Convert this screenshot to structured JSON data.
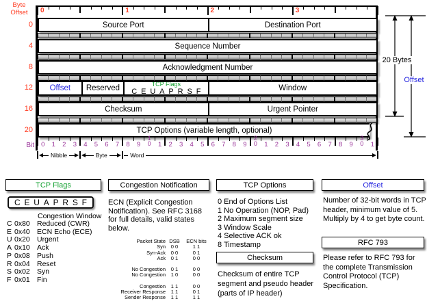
{
  "colors": {
    "red": "#FF3B21",
    "purple": "#993399",
    "blue": "#2424DF",
    "green": "#12A02F",
    "black": "#000000"
  },
  "header_diagram": {
    "byte_offset_label": "Byte Offset",
    "byte_numbers": [
      "0",
      "1",
      "2",
      "3"
    ],
    "row_offsets": [
      "0",
      "4",
      "8",
      "12",
      "16",
      "20"
    ],
    "rows": [
      {
        "cells": [
          {
            "label": "Source Port",
            "bits": 16
          },
          {
            "label": "Destination Port",
            "bits": 16
          }
        ]
      },
      {
        "cells": [
          {
            "label": "Sequence Number",
            "bits": 32
          }
        ]
      },
      {
        "cells": [
          {
            "label": "Acknowledgment Number",
            "bits": 32
          }
        ]
      },
      {
        "cells": [
          {
            "label": "Offset",
            "bits": 4,
            "color": "blue"
          },
          {
            "label": "Reserved",
            "bits": 4
          },
          {
            "label": "TCP Flags",
            "bits": 8,
            "color": "green",
            "sub_letters": [
              "C",
              "E",
              "U",
              "A",
              "P",
              "R",
              "S",
              "F"
            ]
          },
          {
            "label": "Window",
            "bits": 16
          }
        ]
      },
      {
        "cells": [
          {
            "label": "Checksum",
            "bits": 16
          },
          {
            "label": "Urgent Pointer",
            "bits": 16
          }
        ]
      },
      {
        "cells": [
          {
            "label": "TCP Options (variable length, optional)",
            "bits": 32,
            "wavy": true
          }
        ]
      }
    ],
    "bit_label": "Bit",
    "bit_numbers": [
      "0",
      "1",
      "2",
      "3",
      "4",
      "5",
      "6",
      "7",
      "8",
      "9",
      "10",
      "1",
      "2",
      "3",
      "4",
      "5",
      "6",
      "7",
      "8",
      "9",
      "20",
      "1",
      "2",
      "3",
      "4",
      "5",
      "6",
      "7",
      "8",
      "9",
      "30",
      "1"
    ],
    "unit_arrows": [
      {
        "label": "Nibble",
        "from": 0,
        "to": 4
      },
      {
        "label": "Byte",
        "from": 4,
        "to": 8
      },
      {
        "label": "Word",
        "from": 8,
        "to": 32
      }
    ],
    "side_annotations": [
      {
        "label": "20 Bytes",
        "color": "black"
      },
      {
        "label": "Offset",
        "color": "blue"
      }
    ]
  },
  "legend": {
    "tcp_flags": {
      "title": "TCP Flags",
      "flag_letters": [
        "C",
        "E",
        "U",
        "A",
        "P",
        "R",
        "S",
        "F"
      ],
      "intro_line": "Congestion Window",
      "items": [
        {
          "flag": "C",
          "hex": "0x80",
          "name": "Reduced (CWR)"
        },
        {
          "flag": "E",
          "hex": "0x40",
          "name": "ECN Echo (ECE)"
        },
        {
          "flag": "U",
          "hex": "0x20",
          "name": "Urgent"
        },
        {
          "flag": "A",
          "hex": "0x10",
          "name": "Ack"
        },
        {
          "flag": "P",
          "hex": "0x08",
          "name": "Push"
        },
        {
          "flag": "R",
          "hex": "0x04",
          "name": "Reset"
        },
        {
          "flag": "S",
          "hex": "0x02",
          "name": "Syn"
        },
        {
          "flag": "F",
          "hex": "0x01",
          "name": "Fin"
        }
      ]
    },
    "congestion_notification": {
      "title": "Congestion Notification",
      "description": "ECN (Explicit Congestion Notification).  See RFC 3168 for full details, valid states below.",
      "table": {
        "headers": [
          "Packet State",
          "DSB",
          "ECN bits"
        ],
        "rows": [
          [
            "Syn",
            "0 0",
            "1 1"
          ],
          [
            "Syn-Ack",
            "0 0",
            "0 1"
          ],
          [
            "Ack",
            "0 1",
            "0 0"
          ],
          [
            "",
            "",
            ""
          ],
          [
            "No Congestion",
            "0 1",
            "0 0"
          ],
          [
            "No Congestion",
            "1 0",
            "0 0"
          ],
          [
            "",
            "",
            ""
          ],
          [
            "Congestion",
            "1 1",
            "0 0"
          ],
          [
            "Receiver Response",
            "1 1",
            "0 1"
          ],
          [
            "Sender Response",
            "1 1",
            "1 1"
          ]
        ]
      }
    },
    "tcp_options": {
      "title": "TCP Options",
      "items": [
        "0 End of Options List",
        "1 No Operation (NOP, Pad)",
        "2 Maximum segment size",
        "3 Window Scale",
        "4 Selective ACK ok",
        "8 Timestamp"
      ]
    },
    "checksum": {
      "title": "Checksum",
      "description": "Checksum of entire TCP segment and pseudo header (parts of IP header)"
    },
    "offset": {
      "title": "Offset",
      "description": "Number of 32-bit words in TCP header, minimum value of 5.  Multiply by 4 to get byte count."
    },
    "rfc": {
      "title": "RFC 793",
      "description": "Please refer to RFC 793 for the complete Transmission Control Protocol (TCP) Specification."
    }
  }
}
